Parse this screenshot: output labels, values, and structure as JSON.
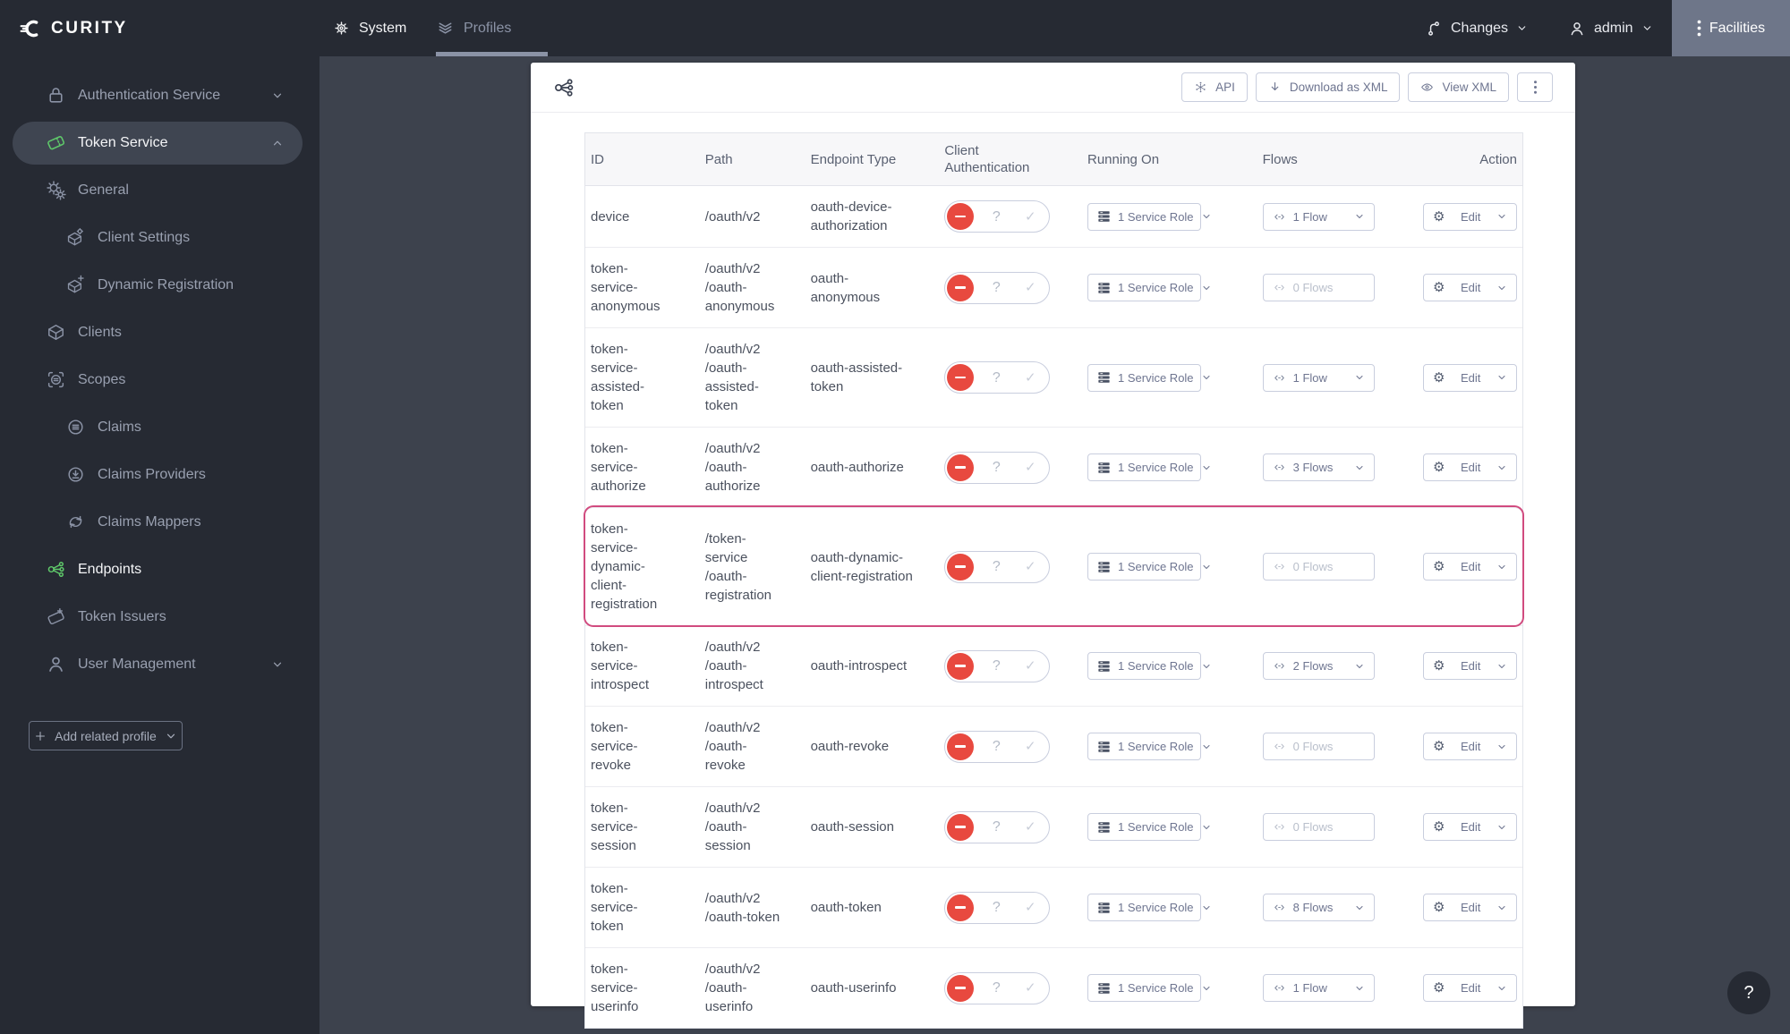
{
  "topbar": {
    "brand": "CURITY",
    "tabs": {
      "system": "System",
      "profiles": "Profiles"
    },
    "changes_label": "Changes",
    "user_label": "admin",
    "facilities_label": "Facilities"
  },
  "sidebar": {
    "items": [
      {
        "label": "Authentication Service",
        "icon": "lock-icon",
        "level": 1,
        "chevron": "down"
      },
      {
        "label": "Token Service",
        "icon": "ticket-icon",
        "level": 1,
        "chevron": "up",
        "active": true,
        "accent": true,
        "white": true
      },
      {
        "label": "General",
        "icon": "gears-icon",
        "level": 1
      },
      {
        "label": "Client Settings",
        "icon": "box-gear-icon",
        "level": 2
      },
      {
        "label": "Dynamic Registration",
        "icon": "box-plus-icon",
        "level": 2
      },
      {
        "label": "Clients",
        "icon": "box-icon",
        "level": 1
      },
      {
        "label": "Scopes",
        "icon": "scope-icon",
        "level": 1
      },
      {
        "label": "Claims",
        "icon": "claims-icon",
        "level": 2
      },
      {
        "label": "Claims Providers",
        "icon": "claims-providers-icon",
        "level": 2
      },
      {
        "label": "Claims Mappers",
        "icon": "claims-mappers-icon",
        "level": 2
      },
      {
        "label": "Endpoints",
        "icon": "endpoints-icon",
        "level": 1,
        "accent": true,
        "white": true
      },
      {
        "label": "Token Issuers",
        "icon": "ticket-plus-icon",
        "level": 1
      },
      {
        "label": "User Management",
        "icon": "user-icon",
        "level": 1,
        "chevron": "down"
      }
    ],
    "add_profile_label": "Add related profile"
  },
  "toolbar": {
    "api_label": "API",
    "download_label": "Download as XML",
    "view_label": "View XML"
  },
  "table": {
    "headers": [
      "ID",
      "Path",
      "Endpoint Type",
      "Client Authentication",
      "Running On",
      "Flows",
      "Action"
    ],
    "edit_label": "Edit",
    "rows": [
      {
        "id": "device",
        "path": "/oauth/v2",
        "type": "oauth-device-authorization",
        "running_on": "1 Service Role",
        "flows": "1 Flow",
        "flows_active": true,
        "highlight": false
      },
      {
        "id": "token-service-anonymous",
        "path": "/oauth/v2/oauth-anonymous",
        "type": "oauth-anonymous",
        "running_on": "1 Service Role",
        "flows": "0 Flows",
        "flows_active": false,
        "highlight": false
      },
      {
        "id": "token-service-assisted-token",
        "path": "/oauth/v2/oauth-assisted-token",
        "type": "oauth-assisted-token",
        "running_on": "1 Service Role",
        "flows": "1 Flow",
        "flows_active": true,
        "highlight": false
      },
      {
        "id": "token-service-authorize",
        "path": "/oauth/v2/oauth-authorize",
        "type": "oauth-authorize",
        "running_on": "1 Service Role",
        "flows": "3 Flows",
        "flows_active": true,
        "highlight": false
      },
      {
        "id": "token-service-dynamic-client-registration",
        "path": "/token-service/oauth-registration",
        "type": "oauth-dynamic-client-registration",
        "running_on": "1 Service Role",
        "flows": "0 Flows",
        "flows_active": false,
        "highlight": true
      },
      {
        "id": "token-service-introspect",
        "path": "/oauth/v2/oauth-introspect",
        "type": "oauth-introspect",
        "running_on": "1 Service Role",
        "flows": "2 Flows",
        "flows_active": true,
        "highlight": false
      },
      {
        "id": "token-service-revoke",
        "path": "/oauth/v2/oauth-revoke",
        "type": "oauth-revoke",
        "running_on": "1 Service Role",
        "flows": "0 Flows",
        "flows_active": false,
        "highlight": false
      },
      {
        "id": "token-service-session",
        "path": "/oauth/v2/oauth-session",
        "type": "oauth-session",
        "running_on": "1 Service Role",
        "flows": "0 Flows",
        "flows_active": false,
        "highlight": false
      },
      {
        "id": "token-service-token",
        "path": "/oauth/v2/oauth-token",
        "type": "oauth-token",
        "running_on": "1 Service Role",
        "flows": "8 Flows",
        "flows_active": true,
        "highlight": false
      },
      {
        "id": "token-service-userinfo",
        "path": "/oauth/v2/oauth-userinfo",
        "type": "oauth-userinfo",
        "running_on": "1 Service Role",
        "flows": "1 Flow",
        "flows_active": true,
        "highlight": false
      }
    ]
  },
  "help_label": "?",
  "colors": {
    "accent_green": "#5fc96a",
    "toggle_red": "#e8493f",
    "highlight_pink": "#d14b7f",
    "topbar_bg": "#262a33",
    "main_bg": "#3d424d",
    "facilities_bg": "#6e7689"
  }
}
